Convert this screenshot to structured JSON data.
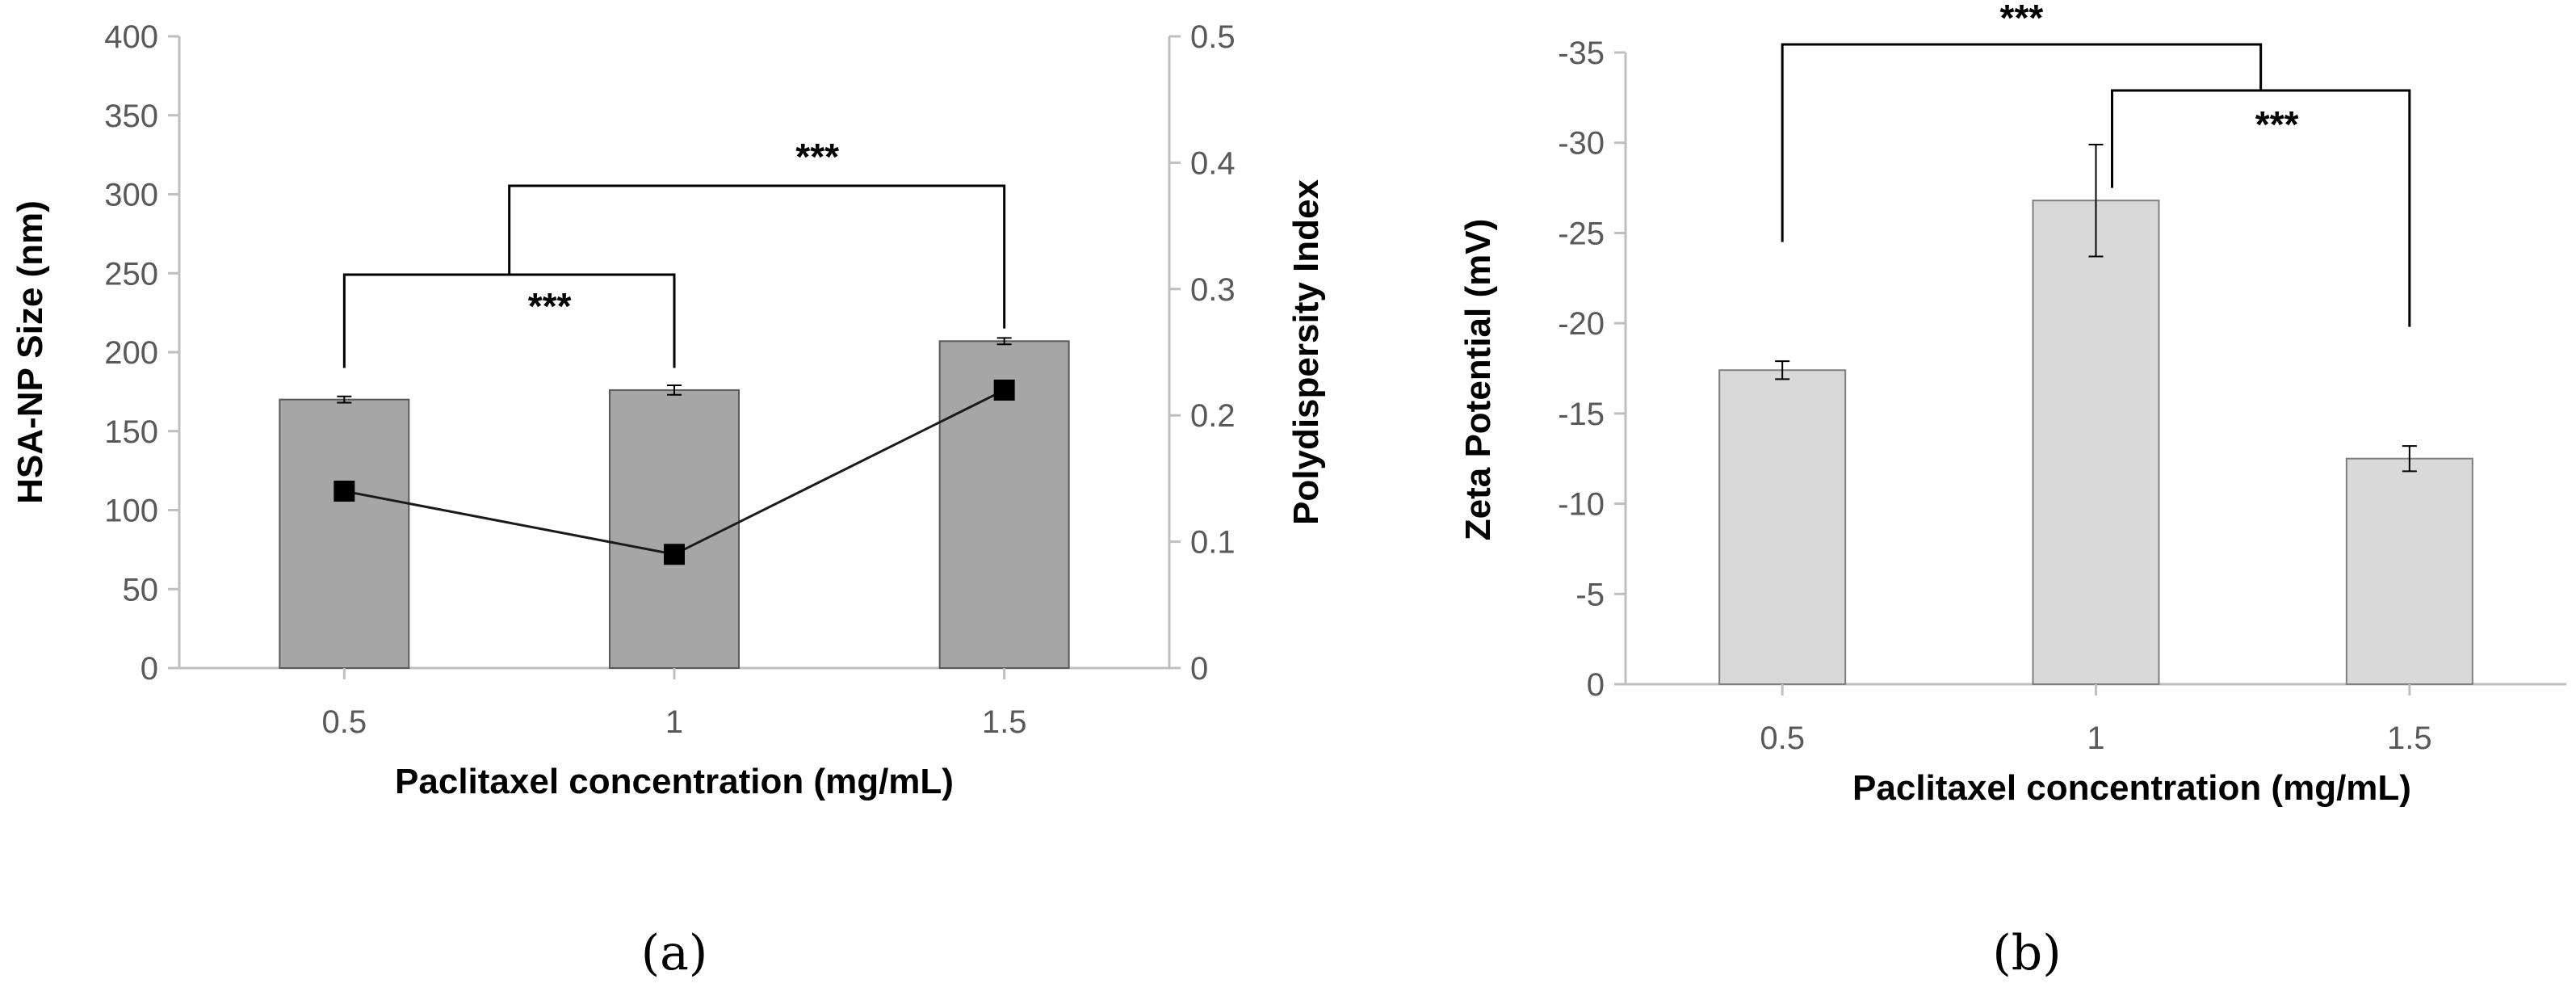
{
  "chart_data": [
    {
      "panel": "(a)",
      "type": "bar",
      "categories": [
        "0.5",
        "1",
        "1.5"
      ],
      "series": [
        {
          "name": "HSA-NP Size (nm)",
          "kind": "bar",
          "axis": "left",
          "values": [
            170,
            176,
            207
          ],
          "errors": [
            2,
            3,
            2
          ],
          "color": "#a6a6a6"
        },
        {
          "name": "Polydispersity Index",
          "kind": "line",
          "axis": "right",
          "values": [
            0.14,
            0.09,
            0.22
          ],
          "color": "#000000"
        }
      ],
      "xlabel": "Paclitaxel concentration (mg/mL)",
      "ylabel": "HSA-NP Size (nm)",
      "y2label": "Polydispersity Index",
      "ylim": [
        0,
        400
      ],
      "y2lim": [
        0,
        0.5
      ],
      "yticks": [
        "0",
        "50",
        "100",
        "150",
        "200",
        "250",
        "300",
        "350",
        "400"
      ],
      "y2ticks": [
        "0",
        "0.1",
        "0.2",
        "0.3",
        "0.4",
        "0.5"
      ],
      "grid": false,
      "significance": [
        {
          "from": 0,
          "to": 1,
          "label": "***"
        },
        {
          "from": "bracket-1",
          "to": 2,
          "label": "***"
        }
      ]
    },
    {
      "panel": "(b)",
      "type": "bar",
      "categories": [
        "0.5",
        "1",
        "1.5"
      ],
      "series": [
        {
          "name": "Zeta Potential (mV)",
          "kind": "bar",
          "axis": "left",
          "values": [
            -17.4,
            -26.8,
            -12.5
          ],
          "errors": [
            0.5,
            3.1,
            0.7
          ],
          "color": "#d9d9d9"
        }
      ],
      "xlabel": "Paclitaxel concentration (mg/mL)",
      "ylabel": "Zeta Potential (mV)",
      "ylim": [
        0,
        -35
      ],
      "yticks": [
        "0",
        "-5",
        "-10",
        "-15",
        "-20",
        "-25",
        "-30",
        "-35"
      ],
      "grid": false,
      "significance": [
        {
          "from": 0,
          "to": "bracket-2",
          "label": "***"
        },
        {
          "from": 1,
          "to": 2,
          "label": "***"
        }
      ]
    }
  ]
}
